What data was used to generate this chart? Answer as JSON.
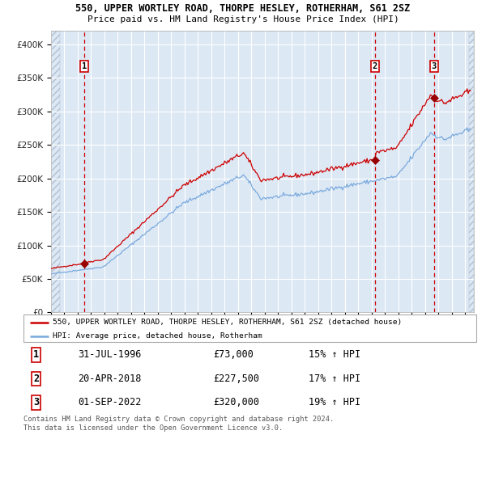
{
  "title1": "550, UPPER WORTLEY ROAD, THORPE HESLEY, ROTHERHAM, S61 2SZ",
  "title2": "Price paid vs. HM Land Registry's House Price Index (HPI)",
  "legend_property": "550, UPPER WORTLEY ROAD, THORPE HESLEY, ROTHERHAM, S61 2SZ (detached house)",
  "legend_hpi": "HPI: Average price, detached house, Rotherham",
  "sale_dates_str": [
    "1996-07-31",
    "2018-04-20",
    "2022-09-01"
  ],
  "sale_prices": [
    73000,
    227500,
    320000
  ],
  "sale_labels": [
    "1",
    "2",
    "3"
  ],
  "sale_pct": [
    "15% ↑ HPI",
    "17% ↑ HPI",
    "19% ↑ HPI"
  ],
  "sale_date_labels": [
    "31-JUL-1996",
    "20-APR-2018",
    "01-SEP-2022"
  ],
  "property_color": "#cc0000",
  "hpi_color": "#7aaadd",
  "vline_color": "#cc0000",
  "dot_color": "#990000",
  "background_color": "#dde8f5",
  "grid_color": "#ffffff",
  "label_box_edgecolor": "#cc0000",
  "ylim": [
    0,
    420000
  ],
  "yticks": [
    0,
    50000,
    100000,
    150000,
    200000,
    250000,
    300000,
    350000,
    400000
  ],
  "footer": "Contains HM Land Registry data © Crown copyright and database right 2024.\nThis data is licensed under the Open Government Licence v3.0."
}
